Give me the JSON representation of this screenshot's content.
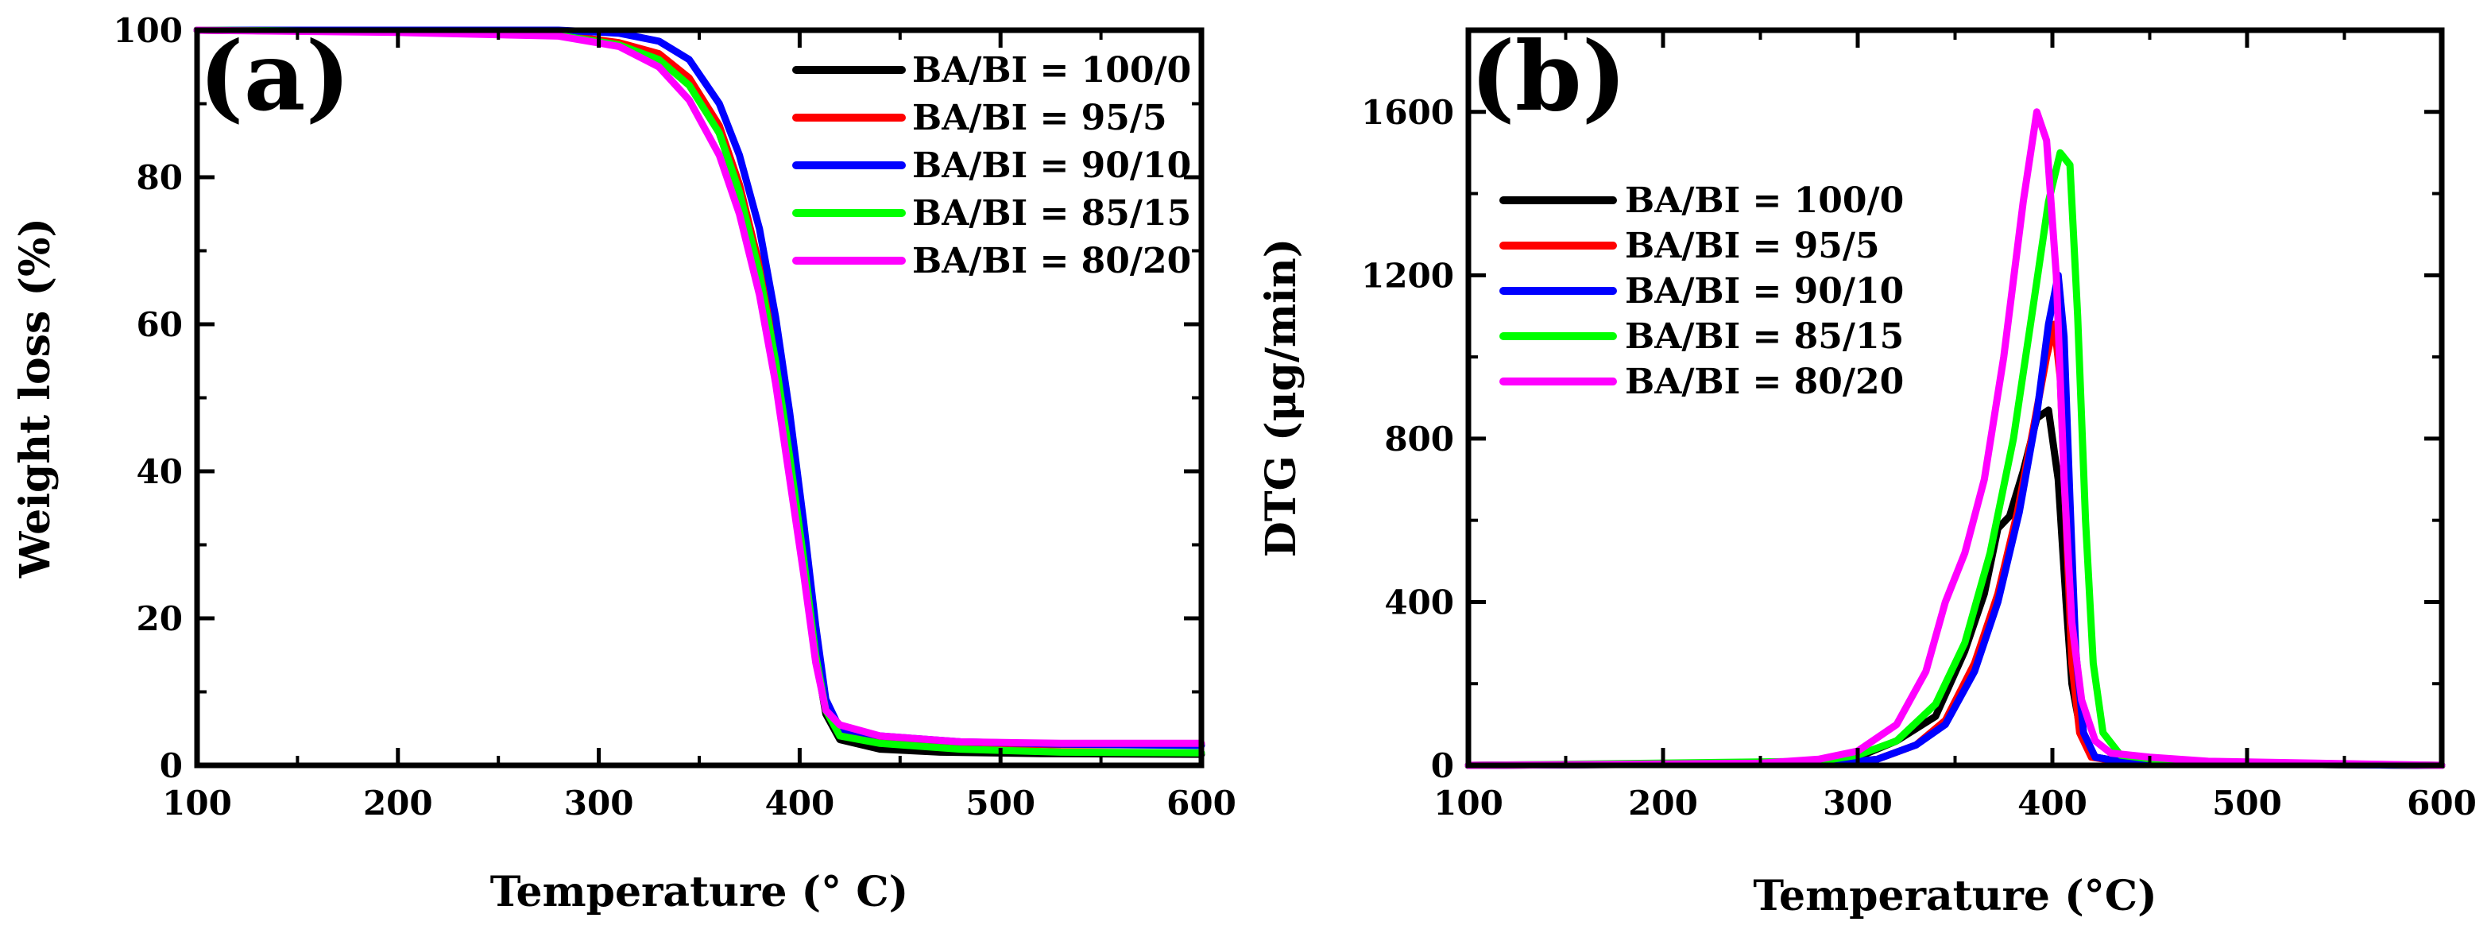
{
  "chart_data": [
    {
      "panel": "a",
      "type": "line",
      "panel_label": "(a)",
      "xlabel": "Temperature (° C)",
      "ylabel": "Weight loss (%)",
      "xlim": [
        100,
        600
      ],
      "ylim": [
        0,
        100
      ],
      "xticks": [
        100,
        200,
        300,
        400,
        500,
        600
      ],
      "yticks": [
        0,
        20,
        40,
        60,
        80,
        100
      ],
      "legend_position": "top-right",
      "series": [
        {
          "name": "BA/BI = 100/0",
          "color": "#000000",
          "points": [
            [
              100,
              100
            ],
            [
              200,
              99.8
            ],
            [
              280,
              99.4
            ],
            [
              310,
              98.2
            ],
            [
              330,
              96.5
            ],
            [
              345,
              93
            ],
            [
              360,
              86
            ],
            [
              370,
              78
            ],
            [
              380,
              67
            ],
            [
              388,
              55
            ],
            [
              395,
              42
            ],
            [
              402,
              28
            ],
            [
              408,
              15
            ],
            [
              413,
              7
            ],
            [
              420,
              3.5
            ],
            [
              440,
              2.2
            ],
            [
              470,
              1.8
            ],
            [
              520,
              1.6
            ],
            [
              600,
              1.5
            ]
          ]
        },
        {
          "name": "BA/BI = 95/5",
          "color": "#ff0000",
          "points": [
            [
              100,
              100
            ],
            [
              200,
              99.8
            ],
            [
              280,
              99.4
            ],
            [
              310,
              98.3
            ],
            [
              330,
              96.8
            ],
            [
              345,
              93.5
            ],
            [
              360,
              87
            ],
            [
              370,
              79
            ],
            [
              380,
              68
            ],
            [
              388,
              56
            ],
            [
              395,
              43
            ],
            [
              402,
              29
            ],
            [
              408,
              16
            ],
            [
              413,
              8
            ],
            [
              420,
              4.5
            ],
            [
              440,
              3.5
            ],
            [
              480,
              3
            ],
            [
              530,
              2.8
            ],
            [
              600,
              2.8
            ]
          ]
        },
        {
          "name": "BA/BI = 90/10",
          "color": "#0000ff",
          "points": [
            [
              100,
              100
            ],
            [
              200,
              100
            ],
            [
              280,
              100
            ],
            [
              310,
              99.6
            ],
            [
              330,
              98.5
            ],
            [
              345,
              96
            ],
            [
              360,
              90
            ],
            [
              370,
              83
            ],
            [
              380,
              73
            ],
            [
              388,
              61
            ],
            [
              395,
              48
            ],
            [
              402,
              33
            ],
            [
              408,
              19
            ],
            [
              413,
              9
            ],
            [
              420,
              5
            ],
            [
              440,
              4
            ],
            [
              480,
              3.2
            ],
            [
              530,
              2.9
            ],
            [
              600,
              2.7
            ]
          ]
        },
        {
          "name": "BA/BI = 85/15",
          "color": "#00ff00",
          "points": [
            [
              100,
              100
            ],
            [
              200,
              99.8
            ],
            [
              280,
              99.3
            ],
            [
              310,
              98
            ],
            [
              330,
              96
            ],
            [
              345,
              92.5
            ],
            [
              360,
              86
            ],
            [
              370,
              78
            ],
            [
              380,
              67
            ],
            [
              388,
              55
            ],
            [
              395,
              42
            ],
            [
              402,
              28
            ],
            [
              408,
              15
            ],
            [
              413,
              7.5
            ],
            [
              420,
              4
            ],
            [
              440,
              3
            ],
            [
              480,
              2.2
            ],
            [
              530,
              1.8
            ],
            [
              600,
              1.7
            ]
          ]
        },
        {
          "name": "BA/BI = 80/20",
          "color": "#ff00ff",
          "points": [
            [
              100,
              100
            ],
            [
              200,
              99.7
            ],
            [
              280,
              99.2
            ],
            [
              310,
              97.8
            ],
            [
              330,
              95
            ],
            [
              345,
              90.5
            ],
            [
              360,
              83
            ],
            [
              370,
              75
            ],
            [
              380,
              64
            ],
            [
              388,
              52
            ],
            [
              395,
              39
            ],
            [
              402,
              26
            ],
            [
              408,
              14
            ],
            [
              413,
              7.5
            ],
            [
              420,
              5.5
            ],
            [
              440,
              4
            ],
            [
              480,
              3.2
            ],
            [
              530,
              3
            ],
            [
              600,
              3
            ]
          ]
        }
      ]
    },
    {
      "panel": "b",
      "type": "line",
      "panel_label": "(b)",
      "xlabel": "Temperature (°C)",
      "ylabel": "DTG (μg/min)",
      "xlim": [
        100,
        600
      ],
      "ylim": [
        0,
        1800
      ],
      "xticks": [
        100,
        200,
        300,
        400,
        500,
        600
      ],
      "yticks": [
        0,
        400,
        800,
        1200,
        1600
      ],
      "legend_position": "upper-left",
      "series": [
        {
          "name": "BA/BI = 100/0",
          "color": "#000000",
          "points": [
            [
              100,
              0
            ],
            [
              280,
              5
            ],
            [
              300,
              20
            ],
            [
              320,
              60
            ],
            [
              340,
              120
            ],
            [
              355,
              280
            ],
            [
              365,
              420
            ],
            [
              372,
              580
            ],
            [
              378,
              610
            ],
            [
              385,
              720
            ],
            [
              392,
              850
            ],
            [
              398,
              870
            ],
            [
              403,
              700
            ],
            [
              407,
              400
            ],
            [
              410,
              200
            ],
            [
              415,
              70
            ],
            [
              422,
              20
            ],
            [
              440,
              5
            ],
            [
              600,
              0
            ]
          ]
        },
        {
          "name": "BA/BI = 95/5",
          "color": "#ff0000",
          "points": [
            [
              100,
              0
            ],
            [
              290,
              5
            ],
            [
              310,
              15
            ],
            [
              330,
              50
            ],
            [
              345,
              110
            ],
            [
              360,
              250
            ],
            [
              372,
              420
            ],
            [
              382,
              620
            ],
            [
              390,
              820
            ],
            [
              397,
              1000
            ],
            [
              401,
              1080
            ],
            [
              404,
              950
            ],
            [
              407,
              600
            ],
            [
              410,
              250
            ],
            [
              414,
              80
            ],
            [
              420,
              20
            ],
            [
              440,
              5
            ],
            [
              600,
              0
            ]
          ]
        },
        {
          "name": "BA/BI = 90/10",
          "color": "#0000ff",
          "points": [
            [
              100,
              0
            ],
            [
              290,
              5
            ],
            [
              310,
              15
            ],
            [
              330,
              50
            ],
            [
              345,
              100
            ],
            [
              360,
              230
            ],
            [
              372,
              400
            ],
            [
              383,
              620
            ],
            [
              392,
              860
            ],
            [
              398,
              1080
            ],
            [
              403,
              1200
            ],
            [
              406,
              1050
            ],
            [
              409,
              650
            ],
            [
              412,
              280
            ],
            [
              416,
              80
            ],
            [
              422,
              20
            ],
            [
              440,
              5
            ],
            [
              600,
              0
            ]
          ]
        },
        {
          "name": "BA/BI = 85/15",
          "color": "#00ff00",
          "points": [
            [
              100,
              0
            ],
            [
              280,
              10
            ],
            [
              300,
              25
            ],
            [
              320,
              60
            ],
            [
              340,
              150
            ],
            [
              355,
              300
            ],
            [
              368,
              520
            ],
            [
              380,
              800
            ],
            [
              390,
              1120
            ],
            [
              398,
              1380
            ],
            [
              404,
              1500
            ],
            [
              409,
              1470
            ],
            [
              413,
              1100
            ],
            [
              417,
              600
            ],
            [
              421,
              250
            ],
            [
              426,
              80
            ],
            [
              435,
              25
            ],
            [
              460,
              10
            ],
            [
              600,
              0
            ]
          ]
        },
        {
          "name": "BA/BI = 80/20",
          "color": "#ff00ff",
          "points": [
            [
              100,
              0
            ],
            [
              250,
              5
            ],
            [
              280,
              15
            ],
            [
              300,
              35
            ],
            [
              320,
              100
            ],
            [
              335,
              230
            ],
            [
              345,
              400
            ],
            [
              355,
              520
            ],
            [
              365,
              700
            ],
            [
              375,
              1000
            ],
            [
              385,
              1380
            ],
            [
              392,
              1600
            ],
            [
              397,
              1530
            ],
            [
              402,
              1200
            ],
            [
              406,
              700
            ],
            [
              410,
              350
            ],
            [
              415,
              160
            ],
            [
              422,
              60
            ],
            [
              430,
              30
            ],
            [
              450,
              20
            ],
            [
              480,
              10
            ],
            [
              600,
              0
            ]
          ]
        }
      ]
    }
  ]
}
